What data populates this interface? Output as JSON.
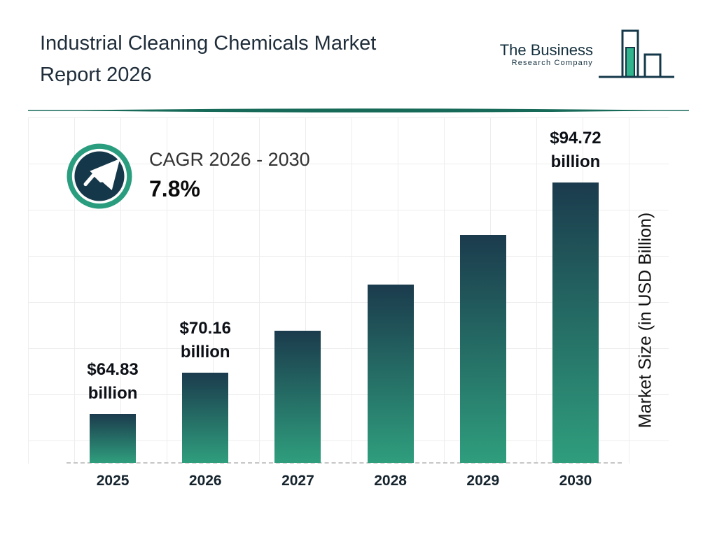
{
  "header": {
    "title_line1": "Industrial Cleaning Chemicals Market",
    "title_line2": "Report 2026",
    "logo": {
      "name_line1": "The Business",
      "name_line2": "Research Company"
    }
  },
  "cagr": {
    "label": "CAGR 2026 - 2030",
    "value": "7.8%"
  },
  "chart_data": {
    "type": "bar",
    "title": "Industrial Cleaning Chemicals Market Report 2026",
    "ylabel": "Market Size (in USD Billion)",
    "categories": [
      "2025",
      "2026",
      "2027",
      "2028",
      "2029",
      "2030"
    ],
    "values": [
      64.83,
      70.16,
      75.6,
      81.5,
      87.9,
      94.72
    ],
    "value_labels": [
      [
        "$64.83",
        "billion"
      ],
      [
        "$70.16",
        "billion"
      ],
      null,
      null,
      null,
      [
        "$94.72",
        "billion"
      ]
    ],
    "ylim": [
      58.5,
      102
    ],
    "grid": true,
    "legend": false,
    "bar_color_top": "#1b3b4d",
    "bar_color_bottom": "#2f9e7d",
    "accent_teal": "#2a9d7f",
    "dark_navy": "#14384a",
    "divider_color": "#176a58"
  }
}
